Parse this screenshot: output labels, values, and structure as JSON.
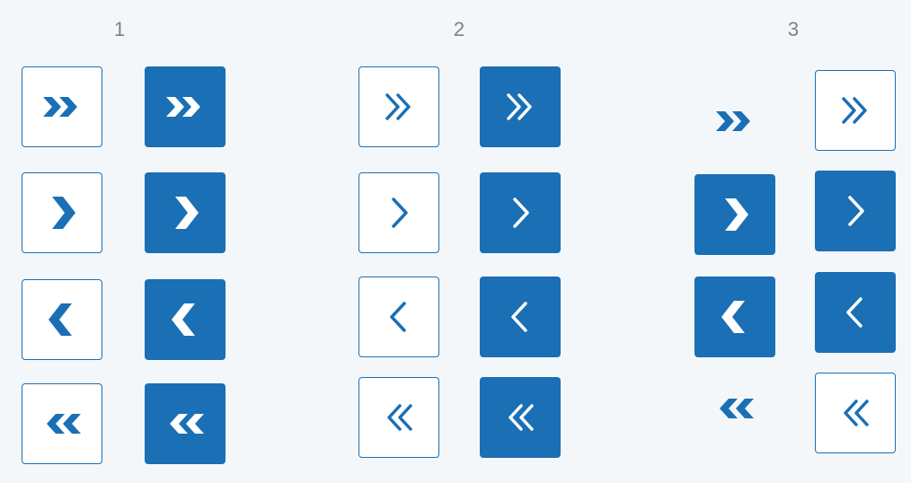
{
  "sets": [
    {
      "label": "1"
    },
    {
      "label": "2"
    },
    {
      "label": "3"
    }
  ],
  "colors": {
    "primary": "#1a6fb5",
    "background": "#f3f7fa",
    "label": "#7f7f7f"
  },
  "icons": {
    "last": "double-chevron-right-icon",
    "next": "chevron-right-icon",
    "previous": "chevron-left-icon",
    "first": "double-chevron-left-icon"
  }
}
